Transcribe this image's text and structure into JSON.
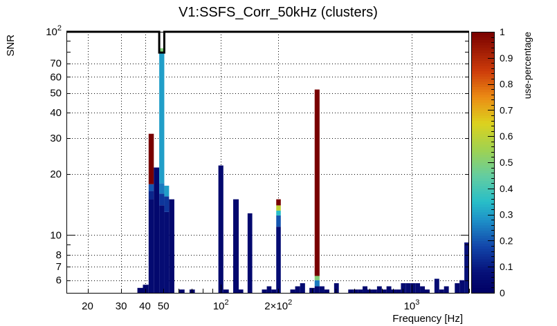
{
  "chart_data": {
    "type": "heatmap",
    "title": "V1:SSFS_Corr_50kHz (clusters)",
    "xlabel": "Frequency [Hz]",
    "ylabel": "SNR",
    "x_scale": "log",
    "y_scale": "log",
    "xlim": [
      15.5,
      2000
    ],
    "ylim": [
      5.2,
      100
    ],
    "x_ticks": [
      {
        "value": 20,
        "label": "20"
      },
      {
        "value": 30,
        "label": "30"
      },
      {
        "value": 40,
        "label": "40"
      },
      {
        "value": 50,
        "label": "50"
      },
      {
        "value": 100,
        "label": "10",
        "exp": "2"
      },
      {
        "value": 200,
        "label": "2×10",
        "exp": "2"
      },
      {
        "value": 1000,
        "label": "10",
        "exp": "3"
      }
    ],
    "y_ticks": [
      {
        "value": 6,
        "label": "6"
      },
      {
        "value": 7,
        "label": "7"
      },
      {
        "value": 8,
        "label": "8"
      },
      {
        "value": 10,
        "label": "10"
      },
      {
        "value": 20,
        "label": "20"
      },
      {
        "value": 30,
        "label": "30"
      },
      {
        "value": 40,
        "label": "40"
      },
      {
        "value": 50,
        "label": "50"
      },
      {
        "value": 60,
        "label": "60"
      },
      {
        "value": 70,
        "label": "70"
      },
      {
        "value": 100,
        "label": "10",
        "exp": "2"
      }
    ],
    "colorbar": {
      "label": "use-percentage",
      "min": 0,
      "max": 1,
      "ticks": [
        {
          "value": 0,
          "label": "0"
        },
        {
          "value": 0.1,
          "label": "0.1"
        },
        {
          "value": 0.2,
          "label": "0.2"
        },
        {
          "value": 0.3,
          "label": "0.3"
        },
        {
          "value": 0.4,
          "label": "0.4"
        },
        {
          "value": 0.5,
          "label": "0.5"
        },
        {
          "value": 0.6,
          "label": "0.6"
        },
        {
          "value": 0.7,
          "label": "0.7"
        },
        {
          "value": 0.8,
          "label": "0.8"
        },
        {
          "value": 0.9,
          "label": "0.9"
        },
        {
          "value": 1,
          "label": "1"
        }
      ]
    },
    "columns": [
      {
        "f0": 36.5,
        "f1": 39.0,
        "cells": [
          [
            5.2,
            5.5,
            0.02
          ]
        ]
      },
      {
        "f0": 39.0,
        "f1": 41.8,
        "cells": [
          [
            5.2,
            5.7,
            0.03
          ]
        ]
      },
      {
        "f0": 41.8,
        "f1": 44.5,
        "cells": [
          [
            5.2,
            15.0,
            0.05
          ],
          [
            15.0,
            16.5,
            0.12
          ],
          [
            16.5,
            17.8,
            0.2
          ],
          [
            17.8,
            31.5,
            1.0
          ]
        ]
      },
      {
        "f0": 44.5,
        "f1": 47.5,
        "cells": [
          [
            5.2,
            21.5,
            0.04
          ]
        ]
      },
      {
        "f0": 47.5,
        "f1": 50.5,
        "cells": [
          [
            5.2,
            14.0,
            0.06
          ],
          [
            14.0,
            16.0,
            0.15
          ],
          [
            16.0,
            18.0,
            0.25
          ],
          [
            18.0,
            79.0,
            0.3
          ],
          [
            79.0,
            83.0,
            0.5
          ]
        ]
      },
      {
        "f0": 50.5,
        "f1": 53.5,
        "cells": [
          [
            5.2,
            13.0,
            0.06
          ],
          [
            13.0,
            15.5,
            0.15
          ],
          [
            15.5,
            17.5,
            0.3
          ]
        ]
      },
      {
        "f0": 53.5,
        "f1": 57.0,
        "cells": [
          [
            5.2,
            15.0,
            0.04
          ]
        ]
      },
      {
        "f0": 60.5,
        "f1": 64.5,
        "cells": [
          [
            5.2,
            5.4,
            0.03
          ]
        ]
      },
      {
        "f0": 68.5,
        "f1": 73.0,
        "cells": [
          [
            5.2,
            5.4,
            0.03
          ]
        ]
      },
      {
        "f0": 97.0,
        "f1": 103.0,
        "cells": [
          [
            5.2,
            22.0,
            0.04
          ]
        ]
      },
      {
        "f0": 103.0,
        "f1": 110.0,
        "cells": [
          [
            5.2,
            5.4,
            0.03
          ]
        ]
      },
      {
        "f0": 116.0,
        "f1": 124.0,
        "cells": [
          [
            5.2,
            15.0,
            0.04
          ]
        ]
      },
      {
        "f0": 124.0,
        "f1": 131.0,
        "cells": [
          [
            5.2,
            5.4,
            0.03
          ]
        ]
      },
      {
        "f0": 138.0,
        "f1": 146.0,
        "cells": [
          [
            5.2,
            12.8,
            0.04
          ]
        ]
      },
      {
        "f0": 164.0,
        "f1": 174.0,
        "cells": [
          [
            5.2,
            5.4,
            0.03
          ]
        ]
      },
      {
        "f0": 174.0,
        "f1": 184.0,
        "cells": [
          [
            5.2,
            5.6,
            0.04
          ]
        ]
      },
      {
        "f0": 184.0,
        "f1": 195.0,
        "cells": [
          [
            5.2,
            5.4,
            0.03
          ]
        ]
      },
      {
        "f0": 195.0,
        "f1": 206.0,
        "cells": [
          [
            5.2,
            11.0,
            0.06
          ],
          [
            11.0,
            12.5,
            0.2
          ],
          [
            12.5,
            13.2,
            0.35
          ],
          [
            13.2,
            14.0,
            0.6
          ],
          [
            14.0,
            15.0,
            1.0
          ]
        ]
      },
      {
        "f0": 231.0,
        "f1": 245.0,
        "cells": [
          [
            5.2,
            5.4,
            0.03
          ]
        ]
      },
      {
        "f0": 245.0,
        "f1": 260.0,
        "cells": [
          [
            5.2,
            5.6,
            0.04
          ]
        ]
      },
      {
        "f0": 260.0,
        "f1": 276.0,
        "cells": [
          [
            5.2,
            5.8,
            0.05
          ]
        ]
      },
      {
        "f0": 291.0,
        "f1": 310.0,
        "cells": [
          [
            5.2,
            5.5,
            0.03
          ]
        ]
      },
      {
        "f0": 310.0,
        "f1": 329.0,
        "cells": [
          [
            5.2,
            5.6,
            0.04
          ],
          [
            5.6,
            6.0,
            0.25
          ],
          [
            6.0,
            6.3,
            0.5
          ],
          [
            6.3,
            52.0,
            1.0
          ]
        ]
      },
      {
        "f0": 329.0,
        "f1": 349.0,
        "cells": [
          [
            5.2,
            5.6,
            0.05
          ]
        ]
      },
      {
        "f0": 349.0,
        "f1": 370.0,
        "cells": [
          [
            5.2,
            5.4,
            0.03
          ]
        ]
      },
      {
        "f0": 392.0,
        "f1": 415.0,
        "cells": [
          [
            5.2,
            5.8,
            0.04
          ]
        ]
      },
      {
        "f0": 465.0,
        "f1": 493.0,
        "cells": [
          [
            5.2,
            5.4,
            0.03
          ]
        ]
      },
      {
        "f0": 493.0,
        "f1": 522.0,
        "cells": [
          [
            5.2,
            5.4,
            0.03
          ]
        ]
      },
      {
        "f0": 522.0,
        "f1": 553.0,
        "cells": [
          [
            5.2,
            5.4,
            0.03
          ]
        ]
      },
      {
        "f0": 553.0,
        "f1": 586.0,
        "cells": [
          [
            5.2,
            5.6,
            0.04
          ]
        ]
      },
      {
        "f0": 586.0,
        "f1": 621.0,
        "cells": [
          [
            5.2,
            5.4,
            0.03
          ]
        ]
      },
      {
        "f0": 621.0,
        "f1": 658.0,
        "cells": [
          [
            5.2,
            5.4,
            0.03
          ]
        ]
      },
      {
        "f0": 658.0,
        "f1": 697.0,
        "cells": [
          [
            5.2,
            5.6,
            0.04
          ]
        ]
      },
      {
        "f0": 697.0,
        "f1": 738.0,
        "cells": [
          [
            5.2,
            5.4,
            0.03
          ]
        ]
      },
      {
        "f0": 738.0,
        "f1": 782.0,
        "cells": [
          [
            5.2,
            5.6,
            0.04
          ]
        ]
      },
      {
        "f0": 782.0,
        "f1": 829.0,
        "cells": [
          [
            5.2,
            5.4,
            0.03
          ]
        ]
      },
      {
        "f0": 829.0,
        "f1": 878.0,
        "cells": [
          [
            5.2,
            5.4,
            0.03
          ]
        ]
      },
      {
        "f0": 878.0,
        "f1": 930.0,
        "cells": [
          [
            5.2,
            5.8,
            0.05
          ]
        ]
      },
      {
        "f0": 930.0,
        "f1": 985.0,
        "cells": [
          [
            5.2,
            5.8,
            0.05
          ]
        ]
      },
      {
        "f0": 985.0,
        "f1": 1044.0,
        "cells": [
          [
            5.2,
            5.8,
            0.05
          ]
        ]
      },
      {
        "f0": 1044.0,
        "f1": 1106.0,
        "cells": [
          [
            5.2,
            5.8,
            0.05
          ]
        ]
      },
      {
        "f0": 1106.0,
        "f1": 1172.0,
        "cells": [
          [
            5.2,
            5.6,
            0.04
          ]
        ]
      },
      {
        "f0": 1172.0,
        "f1": 1242.0,
        "cells": [
          [
            5.2,
            5.4,
            0.03
          ]
        ]
      },
      {
        "f0": 1316.0,
        "f1": 1394.0,
        "cells": [
          [
            5.2,
            6.1,
            0.06
          ]
        ]
      },
      {
        "f0": 1394.0,
        "f1": 1477.0,
        "cells": [
          [
            5.2,
            5.4,
            0.03
          ]
        ]
      },
      {
        "f0": 1477.0,
        "f1": 1565.0,
        "cells": [
          [
            5.2,
            5.6,
            0.04
          ]
        ]
      },
      {
        "f0": 1682.0,
        "f1": 1782.0,
        "cells": [
          [
            5.2,
            5.8,
            0.04
          ]
        ]
      },
      {
        "f0": 1782.0,
        "f1": 1888.0,
        "cells": [
          [
            5.2,
            6.0,
            0.05
          ]
        ]
      },
      {
        "f0": 1888.0,
        "f1": 2000.0,
        "cells": [
          [
            5.2,
            9.2,
            0.08
          ]
        ]
      }
    ],
    "outline": {
      "level": 100,
      "notch_f0": 47.5,
      "notch_f1": 50.5,
      "notch_bottom": 79.0
    }
  }
}
